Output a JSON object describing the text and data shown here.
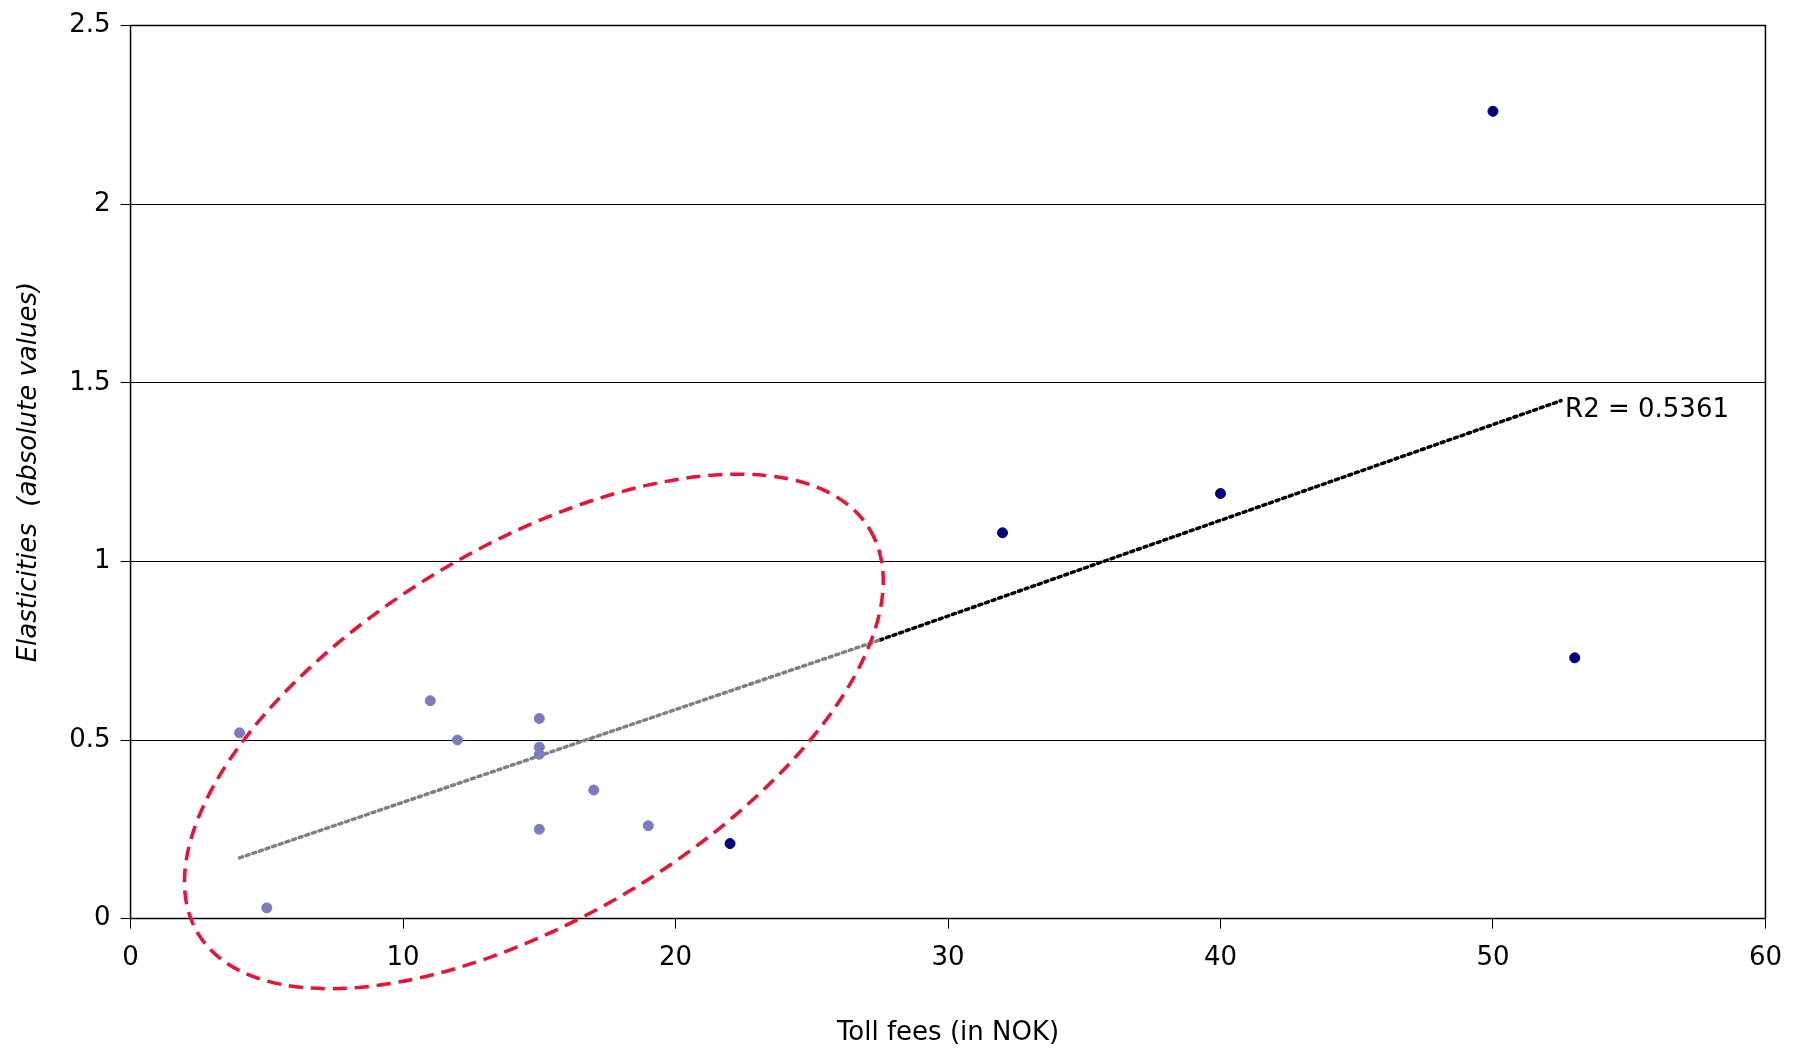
{
  "chart_data": {
    "type": "scatter",
    "xlabel": "Toll fees (in NOK)",
    "ylabel": "Elasticities  (absolute values)",
    "xlim": [
      0,
      60
    ],
    "xticks": [
      0,
      10,
      20,
      30,
      40,
      50,
      60
    ],
    "ylim": [
      0,
      2.5
    ],
    "yticks": [
      0,
      0.5,
      1,
      1.5,
      2,
      2.5
    ],
    "grid": "y",
    "series": [
      {
        "type": "scatter",
        "marker": "circle",
        "color": "#7b7bc4",
        "x": [
          4,
          5,
          11,
          12,
          15,
          15,
          15,
          15,
          17,
          19
        ],
        "values": [
          0.52,
          0.03,
          0.61,
          0.5,
          0.56,
          0.48,
          0.46,
          0.25,
          0.36,
          0.26
        ]
      },
      {
        "type": "scatter",
        "marker": "circle",
        "color": "#000080",
        "x": [
          22,
          32,
          40,
          50,
          53
        ],
        "values": [
          0.21,
          1.08,
          1.19,
          2.26,
          0.73
        ]
      },
      {
        "type": "line",
        "marker": "none",
        "color": "#808080",
        "line_style": "dotted",
        "x": [
          4,
          27.5
        ],
        "values": [
          0.17,
          0.78
        ]
      },
      {
        "type": "line",
        "marker": "none",
        "color": "#000000",
        "line_style": "dotted",
        "x": [
          27.5,
          52.5
        ],
        "values": [
          0.78,
          1.45
        ]
      }
    ],
    "annotations": [
      {
        "text": "R2 = 0.5361",
        "x": 52.5,
        "y": 1.45
      }
    ]
  }
}
